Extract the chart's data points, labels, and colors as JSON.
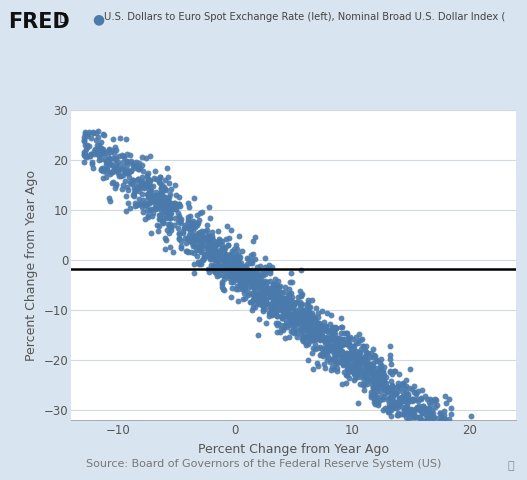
{
  "xlabel": "Percent Change from Year Ago",
  "ylabel": "Percent Change from Year Ago",
  "legend_label": "U.S. Dollars to Euro Spot Exchange Rate (left), Nominal Broad U.S. Dollar Index (",
  "source_text": "Source: Board of Governors of the Federal Reserve System (US)",
  "xlim": [
    -14,
    24
  ],
  "ylim": [
    -32,
    28
  ],
  "xticks": [
    -10,
    0,
    10,
    20
  ],
  "yticks": [
    -30,
    -20,
    -10,
    0,
    10,
    20,
    30
  ],
  "scatter_color": "#4a7aac",
  "hline_y": -1.8,
  "background_color": "#d8e4ef",
  "plot_bg_color": "#ffffff",
  "dot_size": 18,
  "dot_alpha": 0.9,
  "n_points": 1600,
  "slope": -1.85,
  "intercept": -1.5,
  "x_spread": 2.0,
  "y_spread": 2.5,
  "x_start": -12,
  "x_end": 22
}
